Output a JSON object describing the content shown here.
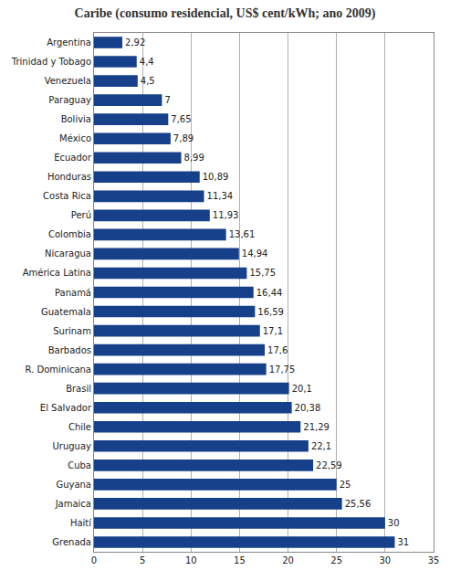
{
  "chart_data": {
    "type": "bar",
    "orientation": "horizontal",
    "title": "Caribe (consumo residencial, US$ cent/kWh; ano 2009)",
    "categories": [
      "Argentina",
      "Trinidad y Tobago",
      "Venezuela",
      "Paraguay",
      "Bolivia",
      "México",
      "Ecuador",
      "Honduras",
      "Costa Rica",
      "Perú",
      "Colombia",
      "Nicaragua",
      "América Latina",
      "Panamá",
      "Guatemala",
      "Surinam",
      "Barbados",
      "R. Dominicana",
      "Brasil",
      "El Salvador",
      "Chile",
      "Uruguay",
      "Cuba",
      "Guyana",
      "Jamaica",
      "Haití",
      "Grenada"
    ],
    "values": [
      2.92,
      4.4,
      4.5,
      7,
      7.65,
      7.89,
      8.99,
      10.89,
      11.34,
      11.93,
      13.61,
      14.94,
      15.75,
      16.44,
      16.59,
      17.1,
      17.6,
      17.75,
      20.1,
      20.38,
      21.29,
      22.1,
      22.59,
      25,
      25.56,
      30,
      31
    ],
    "value_labels": [
      "2,92",
      "4,4",
      "4,5",
      "7",
      "7,65",
      "7,89",
      "8,99",
      "10,89",
      "11,34",
      "11,93",
      "13,61",
      "14,94",
      "15,75",
      "16,44",
      "16,59",
      "17,1",
      "17,6",
      "17,75",
      "20,1",
      "20,38",
      "21,29",
      "22,1",
      "22,59",
      "25",
      "25,56",
      "30",
      "31"
    ],
    "color": "#17408b",
    "xlim": [
      0,
      35
    ],
    "xticks": [
      0,
      5,
      10,
      15,
      20,
      25,
      30,
      35
    ],
    "grid": true,
    "data_labels": true
  }
}
